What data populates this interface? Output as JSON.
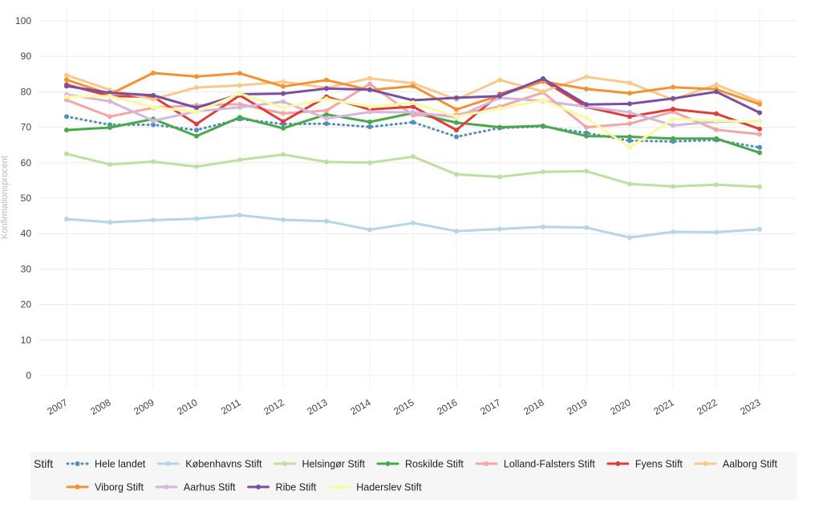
{
  "chart_data": {
    "type": "line",
    "title": "",
    "xlabel": "",
    "ylabel": "Konfirmationsprocent",
    "ylim": [
      0,
      100
    ],
    "yticks": [
      0,
      10,
      20,
      30,
      40,
      50,
      60,
      70,
      80,
      90,
      100
    ],
    "grid": true,
    "legend_title": "Stift",
    "legend_position": "bottom",
    "x": [
      "2007",
      "2008",
      "2009",
      "2010",
      "2011",
      "2012",
      "2013",
      "2014",
      "2015",
      "2016",
      "2017",
      "2018",
      "2019",
      "2020",
      "2021",
      "2022",
      "2023"
    ],
    "series": [
      {
        "name": "Hele landet",
        "color": "#4f8fc0",
        "dash": "dot",
        "values": [
          73.0,
          70.7,
          70.7,
          69.2,
          72.3,
          70.9,
          71.0,
          70.1,
          71.4,
          67.3,
          69.8,
          70.2,
          68.4,
          66.2,
          66.0,
          66.4,
          64.3
        ]
      },
      {
        "name": "Københavns Stift",
        "color": "#b6d5e6",
        "dash": "solid",
        "values": [
          44.1,
          43.2,
          43.8,
          44.2,
          45.2,
          43.9,
          43.5,
          41.1,
          43.0,
          40.7,
          41.3,
          41.9,
          41.7,
          38.9,
          40.5,
          40.4,
          41.2
        ]
      },
      {
        "name": "Helsingør Stift",
        "color": "#bde0a0",
        "dash": "solid",
        "values": [
          62.5,
          59.5,
          60.3,
          58.9,
          60.8,
          62.3,
          60.2,
          60.0,
          61.7,
          56.7,
          56.0,
          57.4,
          57.6,
          54.0,
          53.3,
          53.8,
          53.2
        ]
      },
      {
        "name": "Roskilde Stift",
        "color": "#4aa84a",
        "dash": "solid",
        "values": [
          69.2,
          69.9,
          72.3,
          67.5,
          72.8,
          69.7,
          73.6,
          71.5,
          74.0,
          71.3,
          70.0,
          70.4,
          67.5,
          67.3,
          66.8,
          66.8,
          62.8
        ]
      },
      {
        "name": "Lolland-Falsters Stift",
        "color": "#f4a6a6",
        "dash": "solid",
        "values": [
          77.7,
          73.0,
          75.5,
          76.2,
          76.5,
          73.9,
          74.7,
          82.2,
          73.4,
          73.5,
          75.8,
          79.8,
          70.0,
          71.0,
          74.4,
          69.3,
          68.0
        ]
      },
      {
        "name": "Fyens Stift",
        "color": "#e03c3c",
        "dash": "solid",
        "values": [
          82.0,
          78.8,
          78.6,
          70.9,
          79.0,
          71.6,
          78.6,
          75.0,
          75.8,
          69.2,
          79.3,
          83.2,
          75.7,
          73.0,
          75.1,
          73.8,
          69.5
        ]
      },
      {
        "name": "Aalborg Stift",
        "color": "#f7c98a",
        "dash": "solid",
        "values": [
          84.7,
          80.5,
          77.9,
          81.2,
          81.8,
          82.8,
          81.1,
          83.8,
          82.4,
          77.8,
          83.3,
          80.1,
          84.2,
          82.5,
          77.8,
          82.0,
          77.2
        ]
      },
      {
        "name": "Viborg Stift",
        "color": "#f39232",
        "dash": "solid",
        "values": [
          83.4,
          79.3,
          85.3,
          84.3,
          85.2,
          81.5,
          83.3,
          80.5,
          81.6,
          75.0,
          79.0,
          82.9,
          80.8,
          79.6,
          81.3,
          80.7,
          76.5
        ]
      },
      {
        "name": "Aarhus Stift",
        "color": "#d4b8dc",
        "dash": "solid",
        "values": [
          79.2,
          77.3,
          71.8,
          74.5,
          75.6,
          77.2,
          72.5,
          74.3,
          74.2,
          72.8,
          78.3,
          77.4,
          75.8,
          74.2,
          70.5,
          71.6,
          71.6
        ]
      },
      {
        "name": "Ribe Stift",
        "color": "#7a4fa2",
        "dash": "solid",
        "values": [
          81.6,
          79.7,
          79.0,
          75.5,
          79.3,
          79.5,
          80.9,
          80.6,
          77.6,
          78.3,
          78.8,
          83.7,
          76.4,
          76.6,
          78.1,
          80.0,
          74.1
        ]
      },
      {
        "name": "Haderslev Stift",
        "color": "#fafaa0",
        "dash": "solid",
        "values": [
          78.6,
          78.8,
          75.7,
          74.3,
          79.5,
          75.5,
          78.0,
          75.8,
          76.9,
          73.0,
          75.3,
          77.6,
          72.6,
          64.3,
          72.3,
          71.9,
          71.5
        ]
      }
    ]
  }
}
